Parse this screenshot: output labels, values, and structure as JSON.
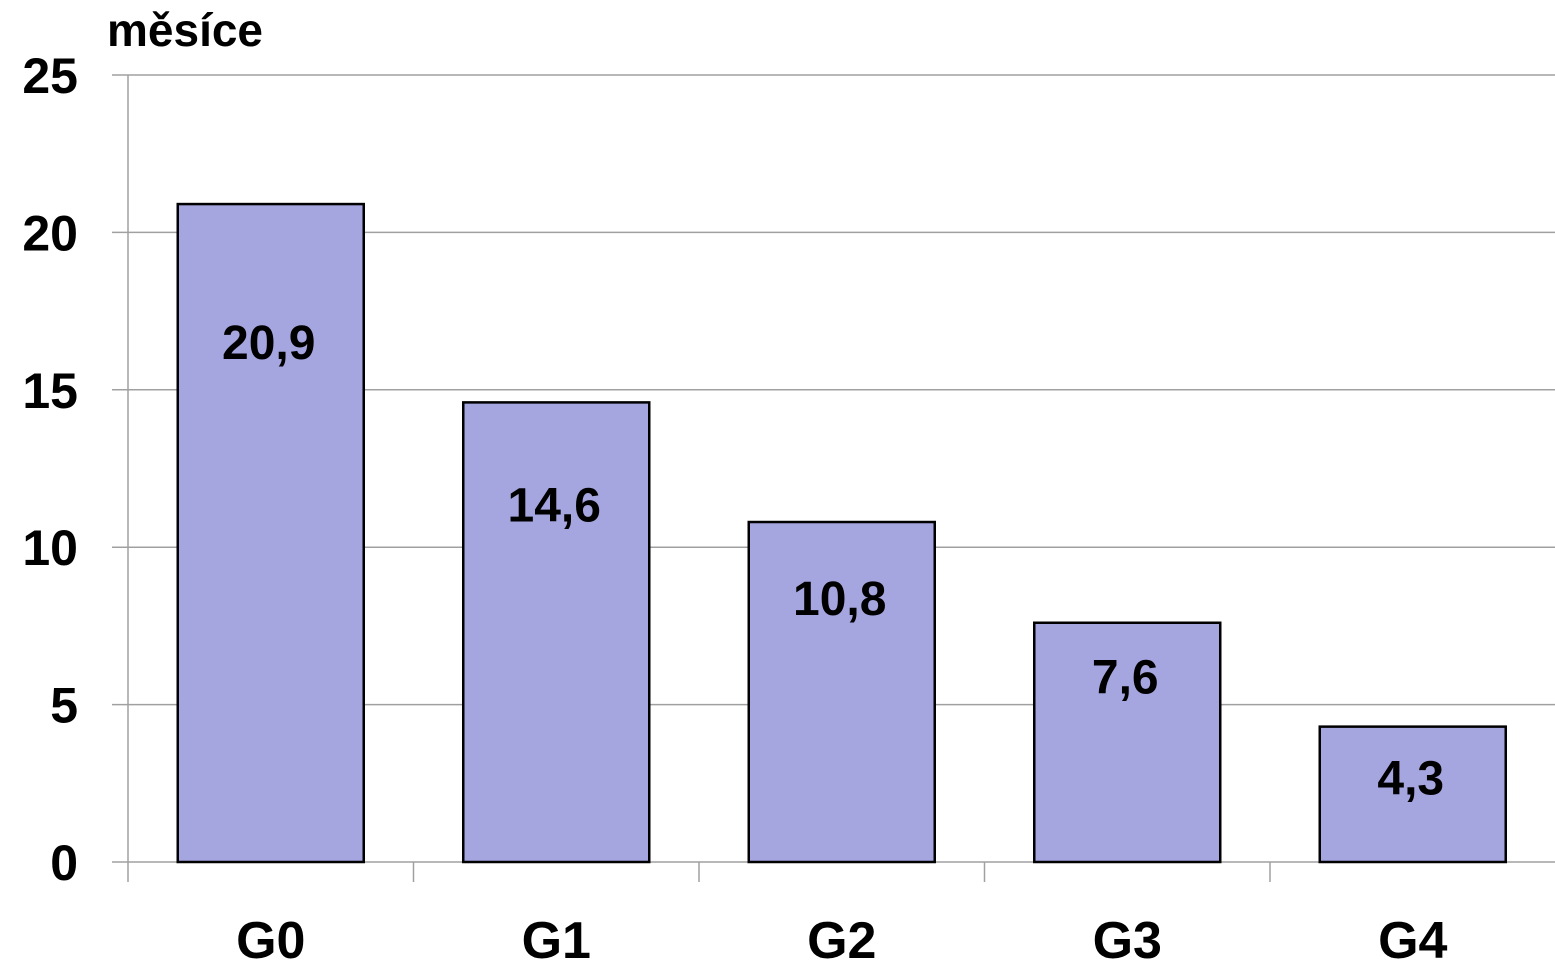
{
  "chart_data": {
    "type": "bar",
    "categories": [
      "G0",
      "G1",
      "G2",
      "G3",
      "G4"
    ],
    "values": [
      20.9,
      14.6,
      10.8,
      7.6,
      4.3
    ],
    "data_labels": [
      "20,9",
      "14,6",
      "10,8",
      "7,6",
      "4,3"
    ],
    "ylabel": "měsíce",
    "ylim": [
      0,
      25
    ],
    "yticks": [
      0,
      5,
      10,
      15,
      20,
      25
    ],
    "grid": true,
    "legend": "none",
    "bar_color": "#A5A5E0",
    "bar_edge_color": "#000000",
    "grid_color": "#A0A0A0"
  }
}
